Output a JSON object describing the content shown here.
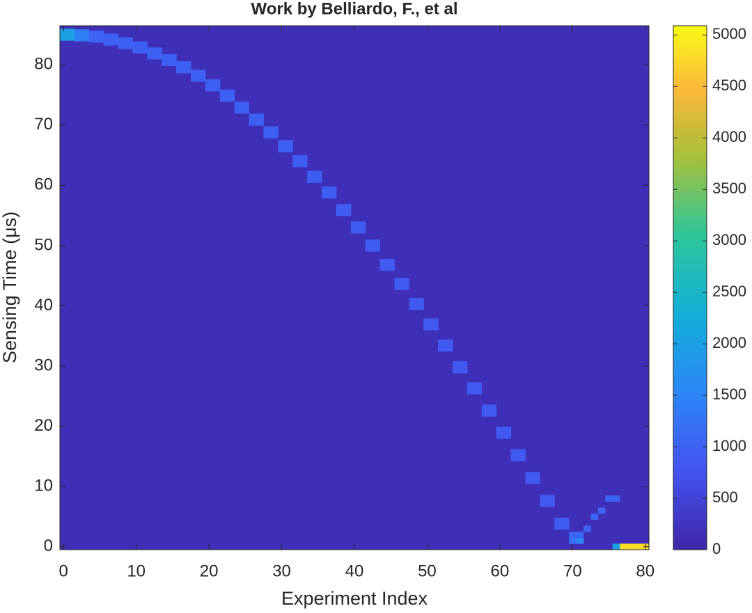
{
  "chart_data": {
    "type": "heatmap",
    "title": "Work by Belliardo, F., et al",
    "xlabel": "Experiment Index",
    "ylabel": "Sensing Time (μs)",
    "xlim": [
      -0.5,
      80.5
    ],
    "xticks": [
      0,
      10,
      20,
      30,
      40,
      50,
      60,
      70,
      80
    ],
    "ylim": [
      -0.5,
      86.5
    ],
    "yticks": [
      0,
      10,
      20,
      30,
      40,
      50,
      60,
      70,
      80
    ],
    "clim": [
      0,
      5090
    ],
    "cticks": [
      0,
      500,
      1000,
      1500,
      2000,
      2500,
      3000,
      3500,
      4000,
      4500,
      5000
    ],
    "background": 150,
    "ridge": {
      "x": [
        0,
        2,
        4,
        6,
        8,
        10,
        12,
        14,
        16,
        18,
        20,
        22,
        24,
        26,
        28,
        30,
        32,
        34,
        36,
        38,
        40,
        42,
        44,
        46,
        48,
        50,
        52,
        54,
        56,
        58,
        60,
        62,
        64,
        66,
        68
      ],
      "y": [
        85,
        84.9,
        84.7,
        84.2,
        83.6,
        82.9,
        81.9,
        80.8,
        79.6,
        78.2,
        76.6,
        74.9,
        72.9,
        70.9,
        68.8,
        66.5,
        64,
        61.4,
        58.8,
        55.9,
        53,
        50,
        46.8,
        43.6,
        40.3,
        36.9,
        33.4,
        29.8,
        26.3,
        22.6,
        18.9,
        15.2,
        11.4,
        7.6,
        3.8
      ],
      "values": [
        2000,
        1400,
        1000,
        950,
        950,
        950,
        950,
        950,
        950,
        950,
        950,
        950,
        950,
        950,
        950,
        950,
        900,
        900,
        900,
        900,
        900,
        900,
        850,
        850,
        850,
        850,
        850,
        850,
        850,
        850,
        850,
        850,
        850,
        850,
        900
      ]
    },
    "cells": {
      "x": [
        70,
        71,
        70,
        71,
        72,
        73,
        74,
        75,
        76,
        76,
        77,
        78,
        79,
        80
      ],
      "y": [
        1,
        1,
        2,
        2,
        3,
        5,
        6,
        8,
        8,
        0,
        0,
        0,
        0,
        0
      ],
      "values": [
        1200,
        1500,
        1000,
        1100,
        1000,
        1000,
        1000,
        1000,
        1000,
        2000,
        4800,
        4800,
        4800,
        4800
      ]
    }
  }
}
